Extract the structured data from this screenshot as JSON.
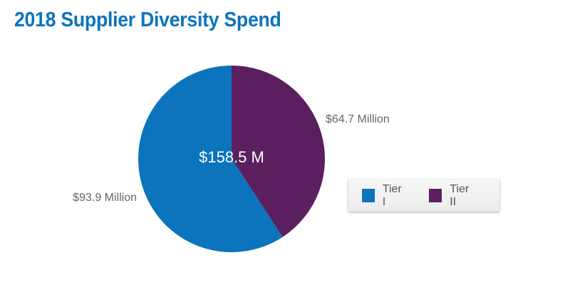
{
  "header": {
    "title": "2018 Supplier Diversity Spend"
  },
  "chart_data": {
    "type": "pie",
    "title": "2018 Supplier Diversity Spend",
    "center_label": "$158.5 M",
    "slices": [
      {
        "name": "Tier II",
        "value": 64.7,
        "label": "$64.7 Million",
        "color": "#5b1f5f"
      },
      {
        "name": "Tier I",
        "value": 93.9,
        "label": "$93.9 Million",
        "color": "#0b74bd"
      }
    ],
    "legend": {
      "placement": "right",
      "items": [
        {
          "name": "Tier I",
          "color": "#0b74bd"
        },
        {
          "name": "Tier II",
          "color": "#5b1f5f"
        }
      ]
    }
  },
  "colors": {
    "accent": "#0b74bd",
    "tier1": "#0b74bd",
    "tier2": "#5b1f5f",
    "label_text": "#666666"
  }
}
